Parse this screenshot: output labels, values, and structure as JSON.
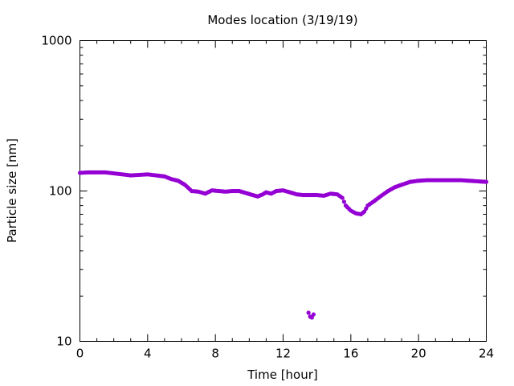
{
  "chart_data": {
    "type": "scatter",
    "title": "Modes location (3/19/19)",
    "xlabel": "Time [hour]",
    "ylabel": "Particle size [nm]",
    "xlim": [
      0,
      24
    ],
    "ylim": [
      10,
      1000
    ],
    "yscale": "log",
    "grid": false,
    "legend": "none",
    "marker_color": "#9400d3",
    "x_ticks": [
      0,
      4,
      8,
      12,
      16,
      20,
      24
    ],
    "x_tick_labels": [
      "0",
      "4",
      "8",
      "12",
      "16",
      "20",
      "24"
    ],
    "y_ticks": [
      10,
      100,
      1000
    ],
    "y_tick_labels": [
      "10",
      "100",
      "1000"
    ],
    "series": [
      {
        "points": [
          [
            0.0,
            132
          ],
          [
            0.5,
            133
          ],
          [
            1.0,
            133
          ],
          [
            1.5,
            133
          ],
          [
            2.0,
            131
          ],
          [
            2.5,
            129
          ],
          [
            3.0,
            127
          ],
          [
            3.5,
            128
          ],
          [
            4.0,
            129
          ],
          [
            4.5,
            127
          ],
          [
            5.0,
            125
          ],
          [
            5.4,
            120
          ],
          [
            5.8,
            117
          ],
          [
            6.2,
            110
          ],
          [
            6.6,
            100
          ],
          [
            7.0,
            99
          ],
          [
            7.4,
            96
          ],
          [
            7.8,
            101
          ],
          [
            8.2,
            100
          ],
          [
            8.6,
            99
          ],
          [
            9.0,
            100
          ],
          [
            9.4,
            100
          ],
          [
            9.8,
            97
          ],
          [
            10.2,
            94
          ],
          [
            10.5,
            92
          ],
          [
            10.8,
            95
          ],
          [
            11.0,
            98
          ],
          [
            11.3,
            96
          ],
          [
            11.6,
            100
          ],
          [
            12.0,
            101
          ],
          [
            12.4,
            98
          ],
          [
            12.8,
            95
          ],
          [
            13.2,
            94
          ],
          [
            13.6,
            94
          ],
          [
            14.0,
            94
          ],
          [
            14.4,
            93
          ],
          [
            14.8,
            96
          ],
          [
            15.2,
            95
          ],
          [
            15.5,
            90
          ],
          [
            15.7,
            80
          ],
          [
            16.0,
            74
          ],
          [
            16.3,
            71
          ],
          [
            16.6,
            70
          ],
          [
            16.8,
            73
          ],
          [
            17.0,
            80
          ],
          [
            17.4,
            86
          ],
          [
            17.8,
            93
          ],
          [
            18.2,
            100
          ],
          [
            18.6,
            106
          ],
          [
            19.0,
            110
          ],
          [
            19.5,
            115
          ],
          [
            20.0,
            117
          ],
          [
            20.5,
            118
          ],
          [
            21.0,
            118
          ],
          [
            21.5,
            118
          ],
          [
            22.0,
            118
          ],
          [
            22.5,
            118
          ],
          [
            23.0,
            117
          ],
          [
            23.5,
            116
          ],
          [
            24.0,
            115
          ]
        ]
      },
      {
        "points": [
          [
            13.5,
            15.5
          ],
          [
            13.6,
            14.6
          ],
          [
            13.7,
            14.4
          ],
          [
            13.8,
            15.1
          ]
        ]
      }
    ]
  }
}
